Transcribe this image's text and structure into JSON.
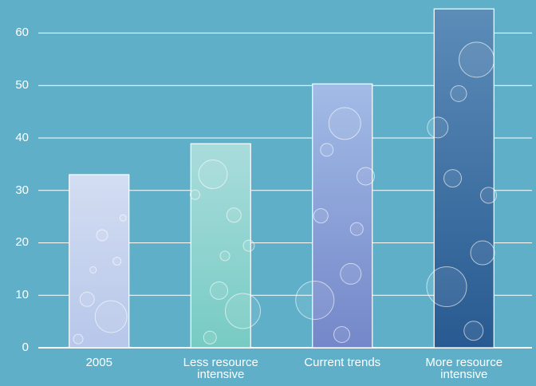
{
  "chart_data": {
    "type": "bar",
    "categories": [
      "2005",
      "Less resource intensive",
      "Current trends",
      "More resource intensive"
    ],
    "values": [
      33,
      38.9,
      50.3,
      64.6
    ],
    "colors": [
      [
        "#d3ddf2",
        "#b7c7ea"
      ],
      [
        "#a9dcdc",
        "#77cbc3"
      ],
      [
        "#a2bbe6",
        "#7487c9"
      ],
      [
        "#5c8cb8",
        "#285a91"
      ]
    ],
    "ylim": [
      0,
      66.3
    ],
    "yticks": [
      0,
      10,
      20,
      30,
      40,
      50,
      60
    ],
    "grid": true
  }
}
